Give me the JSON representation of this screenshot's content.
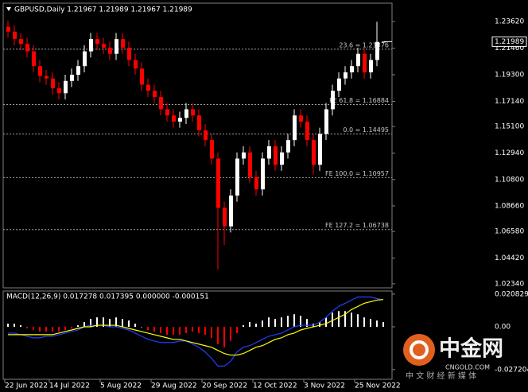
{
  "chart_data": [
    {
      "type": "candlestick",
      "title": "GBPUSD,Daily  1.21967 1.21989 1.21967 1.21989",
      "categories": [
        "22 Jun 2022",
        null,
        null,
        null,
        null,
        null,
        null,
        "14 Jul 2022",
        null,
        null,
        null,
        null,
        null,
        null,
        null,
        "5 Aug 2022",
        null,
        null,
        null,
        null,
        null,
        null,
        null,
        "29 Aug 2022",
        null,
        null,
        null,
        null,
        null,
        null,
        null,
        "20 Sep 2022",
        null,
        null,
        null,
        null,
        null,
        null,
        null,
        "12 Oct 2022",
        null,
        null,
        null,
        null,
        null,
        null,
        null,
        "3 Nov 2022",
        null,
        null,
        null,
        null,
        null,
        null,
        null,
        "25 Nov 2022",
        null,
        null,
        null,
        null
      ],
      "open": [
        1.232,
        1.228,
        1.222,
        1.218,
        1.212,
        1.2,
        1.192,
        1.19,
        1.182,
        1.178,
        1.188,
        1.193,
        1.2,
        1.212,
        1.222,
        1.218,
        1.215,
        1.21,
        1.222,
        1.215,
        1.205,
        1.198,
        1.185,
        1.18,
        1.175,
        1.165,
        1.16,
        1.155,
        1.158,
        1.165,
        1.16,
        1.148,
        1.14,
        1.125,
        1.085,
        1.07,
        1.095,
        1.125,
        1.13,
        1.11,
        1.1,
        1.125,
        1.135,
        1.12,
        1.13,
        1.14,
        1.16,
        1.155,
        1.14,
        1.12,
        1.145,
        1.165,
        1.18,
        1.19,
        1.195,
        1.2,
        1.21,
        1.195,
        1.205,
        1.21967
      ],
      "high": [
        1.237,
        1.233,
        1.227,
        1.223,
        1.217,
        1.205,
        1.197,
        1.195,
        1.187,
        1.193,
        1.198,
        1.205,
        1.217,
        1.227,
        1.227,
        1.223,
        1.22,
        1.227,
        1.227,
        1.22,
        1.21,
        1.203,
        1.19,
        1.185,
        1.18,
        1.17,
        1.165,
        1.163,
        1.17,
        1.17,
        1.165,
        1.153,
        1.145,
        1.13,
        1.09,
        1.1,
        1.13,
        1.135,
        1.135,
        1.115,
        1.13,
        1.14,
        1.14,
        1.135,
        1.145,
        1.165,
        1.165,
        1.16,
        1.145,
        1.15,
        1.17,
        1.185,
        1.195,
        1.2,
        1.205,
        1.215,
        1.215,
        1.21,
        1.236,
        1.21989
      ],
      "low": [
        1.223,
        1.217,
        1.213,
        1.207,
        1.195,
        1.187,
        1.185,
        1.177,
        1.173,
        1.173,
        1.183,
        1.188,
        1.195,
        1.207,
        1.213,
        1.21,
        1.205,
        1.205,
        1.21,
        1.2,
        1.193,
        1.18,
        1.175,
        1.17,
        1.16,
        1.155,
        1.15,
        1.15,
        1.153,
        1.155,
        1.143,
        1.135,
        1.12,
        1.035,
        1.055,
        1.065,
        1.09,
        1.12,
        1.105,
        1.095,
        1.095,
        1.12,
        1.115,
        1.115,
        1.125,
        1.135,
        1.15,
        1.135,
        1.112,
        1.115,
        1.14,
        1.16,
        1.175,
        1.185,
        1.19,
        1.195,
        1.19,
        1.19,
        1.2,
        1.21967
      ],
      "close": [
        1.228,
        1.222,
        1.218,
        1.212,
        1.2,
        1.192,
        1.19,
        1.182,
        1.178,
        1.188,
        1.193,
        1.2,
        1.212,
        1.222,
        1.218,
        1.215,
        1.21,
        1.222,
        1.215,
        1.205,
        1.198,
        1.185,
        1.18,
        1.175,
        1.165,
        1.16,
        1.155,
        1.158,
        1.165,
        1.16,
        1.148,
        1.14,
        1.125,
        1.085,
        1.07,
        1.095,
        1.125,
        1.13,
        1.11,
        1.1,
        1.125,
        1.135,
        1.12,
        1.13,
        1.14,
        1.16,
        1.155,
        1.14,
        1.12,
        1.145,
        1.165,
        1.18,
        1.19,
        1.195,
        1.2,
        1.21,
        1.195,
        1.205,
        1.2197,
        1.21989
      ],
      "up_color": "#ffffff",
      "down_color": "#ff0000",
      "ylim": [
        1.0201,
        1.2511
      ],
      "yticks": [
        {
          "value": 1.2362,
          "label": "1.23620"
        },
        {
          "value": 1.2146,
          "label": "1.21460"
        },
        {
          "value": 1.193,
          "label": "1.19300"
        },
        {
          "value": 1.1714,
          "label": "1.17140"
        },
        {
          "value": 1.151,
          "label": "1.15100"
        },
        {
          "value": 1.1294,
          "label": "1.12940"
        },
        {
          "value": 1.108,
          "label": "1.10800"
        },
        {
          "value": 1.0866,
          "label": "1.08660"
        },
        {
          "value": 1.0658,
          "label": "1.06580"
        },
        {
          "value": 1.0442,
          "label": "1.04420"
        },
        {
          "value": 1.0234,
          "label": "1.02340"
        }
      ],
      "levels": [
        {
          "value": 1.21376,
          "label": "23.6 = 1.21376"
        },
        {
          "value": 1.16884,
          "label": "FE 61.8 = 1.16884"
        },
        {
          "value": 1.14495,
          "label": "0.0 = 1.14495"
        },
        {
          "value": 1.10957,
          "label": "FE 100.0 = 1.10957"
        },
        {
          "value": 1.06738,
          "label": "FE 127.2 = 1.06738"
        }
      ],
      "current_price_label": "1.21989"
    },
    {
      "type": "macd",
      "title": "MACD(12,26,9) 0.017278 0.017395 0.000000 -0.000151",
      "histogram": {
        "up_color": "#ffffff",
        "down_color": "#ff0000",
        "values": [
          0.002,
          0.002,
          0.001,
          -0.001,
          -0.002,
          -0.003,
          -0.003,
          -0.003,
          -0.003,
          -0.002,
          -0.001,
          0.001,
          0.003,
          0.005,
          0.006,
          0.006,
          0.005,
          0.006,
          0.005,
          0.004,
          0.002,
          0.0,
          -0.002,
          -0.003,
          -0.004,
          -0.005,
          -0.005,
          -0.005,
          -0.004,
          -0.003,
          -0.004,
          -0.005,
          -0.007,
          -0.011,
          -0.013,
          -0.009,
          -0.004,
          0.001,
          0.003,
          0.002,
          0.004,
          0.006,
          0.005,
          0.006,
          0.007,
          0.008,
          0.007,
          0.005,
          0.002,
          0.003,
          0.006,
          0.009,
          0.01,
          0.01,
          0.009,
          0.008,
          0.006,
          0.005,
          0.004,
          0.003
        ]
      },
      "series": [
        {
          "color": "#2040ff",
          "values": [
            -0.004,
            -0.004,
            -0.005,
            -0.006,
            -0.007,
            -0.007,
            -0.006,
            -0.006,
            -0.005,
            -0.004,
            -0.003,
            -0.002,
            0.0,
            0.001,
            0.001,
            0.001,
            0.0,
            0.0,
            -0.001,
            -0.002,
            -0.004,
            -0.006,
            -0.008,
            -0.009,
            -0.01,
            -0.01,
            -0.01,
            -0.009,
            -0.009,
            -0.011,
            -0.013,
            -0.016,
            -0.02,
            -0.025,
            -0.025,
            -0.022,
            -0.016,
            -0.013,
            -0.012,
            -0.01,
            -0.008,
            -0.006,
            -0.005,
            -0.004,
            -0.002,
            0.0,
            0.001,
            0.001,
            0.001,
            0.003,
            0.006,
            0.01,
            0.013,
            0.015,
            0.017,
            0.019,
            0.019,
            0.019,
            0.018,
            0.017278
          ]
        },
        {
          "color": "#ffff00",
          "values": [
            -0.005,
            -0.005,
            -0.005,
            -0.005,
            -0.005,
            -0.005,
            -0.005,
            -0.005,
            -0.004,
            -0.003,
            -0.002,
            -0.001,
            0.0,
            0.0,
            0.001,
            0.001,
            0.001,
            0.001,
            0.0,
            -0.001,
            -0.002,
            -0.003,
            -0.004,
            -0.005,
            -0.006,
            -0.007,
            -0.008,
            -0.008,
            -0.009,
            -0.01,
            -0.011,
            -0.012,
            -0.013,
            -0.015,
            -0.017,
            -0.018,
            -0.018,
            -0.017,
            -0.015,
            -0.013,
            -0.012,
            -0.01,
            -0.008,
            -0.007,
            -0.005,
            -0.004,
            -0.002,
            -0.001,
            0.0,
            0.001,
            0.002,
            0.004,
            0.006,
            0.008,
            0.011,
            0.013,
            0.015,
            0.016,
            0.017,
            0.017395
          ]
        }
      ],
      "ylim": [
        -0.0334,
        0.0228
      ],
      "yticks": [
        0.020829,
        {
          "value": 0,
          "label": "0.00"
        },
        -0.027204
      ]
    }
  ],
  "watermark": {
    "brand": "中金网",
    "site": "CNGOLD.COM",
    "slogan": "中 文 财 经 新 媒 体"
  }
}
